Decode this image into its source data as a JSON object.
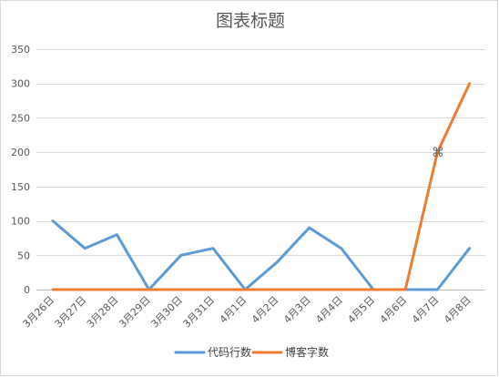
{
  "chart_data": {
    "type": "line",
    "title": "图表标题",
    "xlabel": "",
    "ylabel": "",
    "categories": [
      "3月26日",
      "3月27日",
      "3月28日",
      "3月29日",
      "3月30日",
      "3月31日",
      "4月1日",
      "4月2日",
      "4月3日",
      "4月4日",
      "4月5日",
      "4月6日",
      "4月7日",
      "4月8日"
    ],
    "series": [
      {
        "name": "代码行数",
        "color": "#5b9bd5",
        "values": [
          100,
          60,
          80,
          0,
          50,
          60,
          0,
          40,
          90,
          60,
          0,
          0,
          0,
          60
        ]
      },
      {
        "name": "博客字数",
        "color": "#ed7d31",
        "values": [
          0,
          0,
          0,
          0,
          0,
          0,
          0,
          0,
          0,
          0,
          0,
          0,
          200,
          300
        ]
      }
    ],
    "ylim": [
      0,
      350
    ],
    "yticks": [
      0,
      50,
      100,
      150,
      200,
      250,
      300,
      350
    ],
    "grid": true,
    "legend_position": "bottom"
  },
  "cursor": {
    "icon": "move-cursor-icon",
    "glyph": "⌘"
  }
}
